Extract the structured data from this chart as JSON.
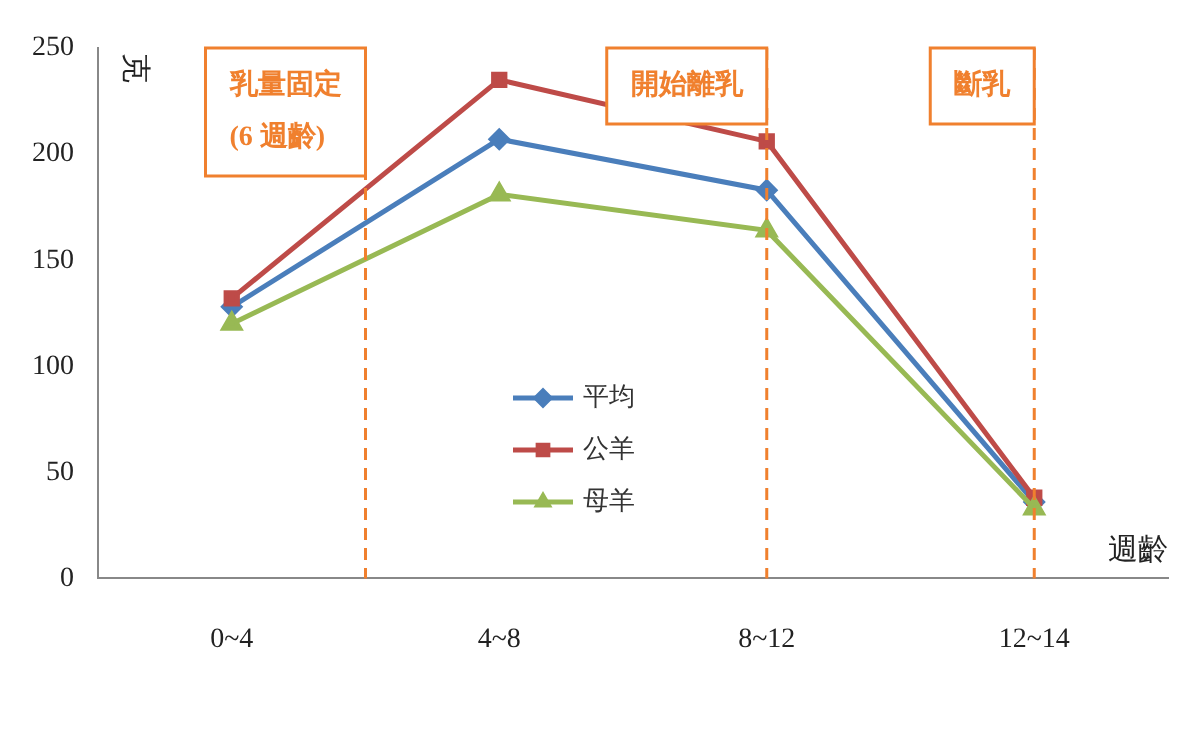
{
  "chart_data": {
    "type": "line",
    "xlabel": "週齡",
    "ylabel": "克",
    "categories": [
      "0~4",
      "4~8",
      "8~12",
      "12~14"
    ],
    "ylim": [
      0,
      250
    ],
    "yticks": [
      0,
      50,
      100,
      150,
      200,
      250
    ],
    "grid": false,
    "legend": "center",
    "annotations": [
      "乳量固定\n(6 週齡)"
    ],
    "series": [
      {
        "name": "平均",
        "color": "#4a7ebb",
        "marker": "diamond",
        "values": [
          128,
          207,
          183,
          36
        ]
      },
      {
        "name": "公羊",
        "color": "#be4b48",
        "marker": "square",
        "values": [
          132,
          235,
          206,
          38
        ]
      },
      {
        "name": "母羊",
        "color": "#98b954",
        "marker": "triangle",
        "values": [
          120,
          181,
          164,
          33
        ]
      }
    ],
    "ref_lines": [
      {
        "axis": "x",
        "value": "8~12",
        "label": "開始離乳",
        "color": "#f0802e",
        "line_style": "dashed"
      },
      {
        "axis": "x",
        "value": "12~14",
        "label": "斷乳",
        "color": "#f0802e",
        "line_style": "dashed"
      }
    ]
  }
}
